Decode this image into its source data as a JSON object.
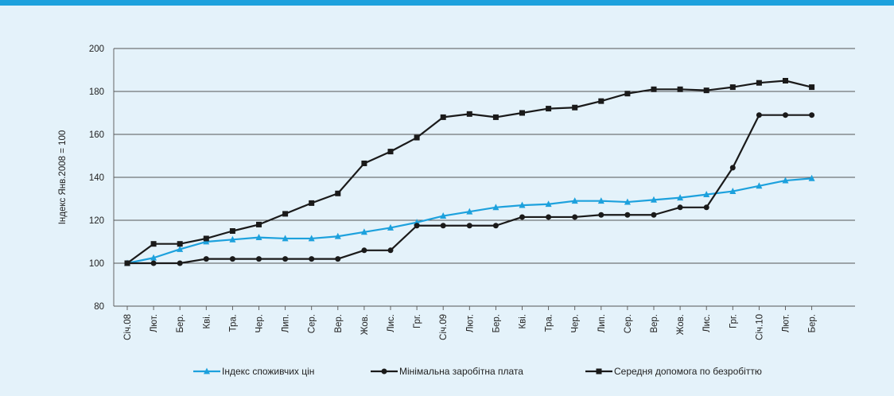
{
  "chart_data": {
    "type": "line",
    "ylabel": "Індекс Янв.2008 = 100",
    "ylim": [
      80,
      200
    ],
    "yticks": [
      80,
      100,
      120,
      140,
      160,
      180,
      200
    ],
    "grid": true,
    "legend_position": "bottom",
    "categories": [
      "Січ.08",
      "Лют.",
      "Бер.",
      "Кві.",
      "Тра.",
      "Чер.",
      "Лип.",
      "Сер.",
      "Вер.",
      "Жов.",
      "Лис.",
      "Грг.",
      "Січ.09",
      "Лют.",
      "Бер.",
      "Кві.",
      "Тра.",
      "Чер.",
      "Лип.",
      "Сер.",
      "Вер.",
      "Жов.",
      "Лис.",
      "Грг.",
      "Січ.10",
      "Лют.",
      "Бер."
    ],
    "series": [
      {
        "name": "Індекс споживчих  цін",
        "color": "#1da1dd",
        "marker": "triangle",
        "values": [
          100,
          102.5,
          106.5,
          110,
          111,
          112,
          111.5,
          111.5,
          112.5,
          114.5,
          116.5,
          119,
          122,
          124,
          126,
          127,
          127.5,
          129,
          129,
          128.5,
          129.5,
          130.5,
          132,
          133.5,
          136,
          138.5,
          139.5
        ]
      },
      {
        "name": "Мінімальна заробітна плата",
        "color": "#1a1a1a",
        "marker": "circle",
        "values": [
          100,
          100,
          100,
          102,
          102,
          102,
          102,
          102,
          102,
          106,
          106,
          117.5,
          117.5,
          117.5,
          117.5,
          121.5,
          121.5,
          121.5,
          122.5,
          122.5,
          122.5,
          126,
          126,
          144.5,
          169,
          169,
          169
        ]
      },
      {
        "name": "Середня допомога по безробіттю",
        "color": "#1a1a1a",
        "marker": "square",
        "values": [
          100,
          109,
          109,
          111.5,
          115,
          118,
          123,
          128,
          132.5,
          146.5,
          152,
          158.5,
          168,
          169.5,
          168,
          170,
          172,
          172.5,
          175.5,
          179,
          181,
          181,
          180.5,
          182,
          184,
          185,
          182
        ]
      }
    ]
  }
}
